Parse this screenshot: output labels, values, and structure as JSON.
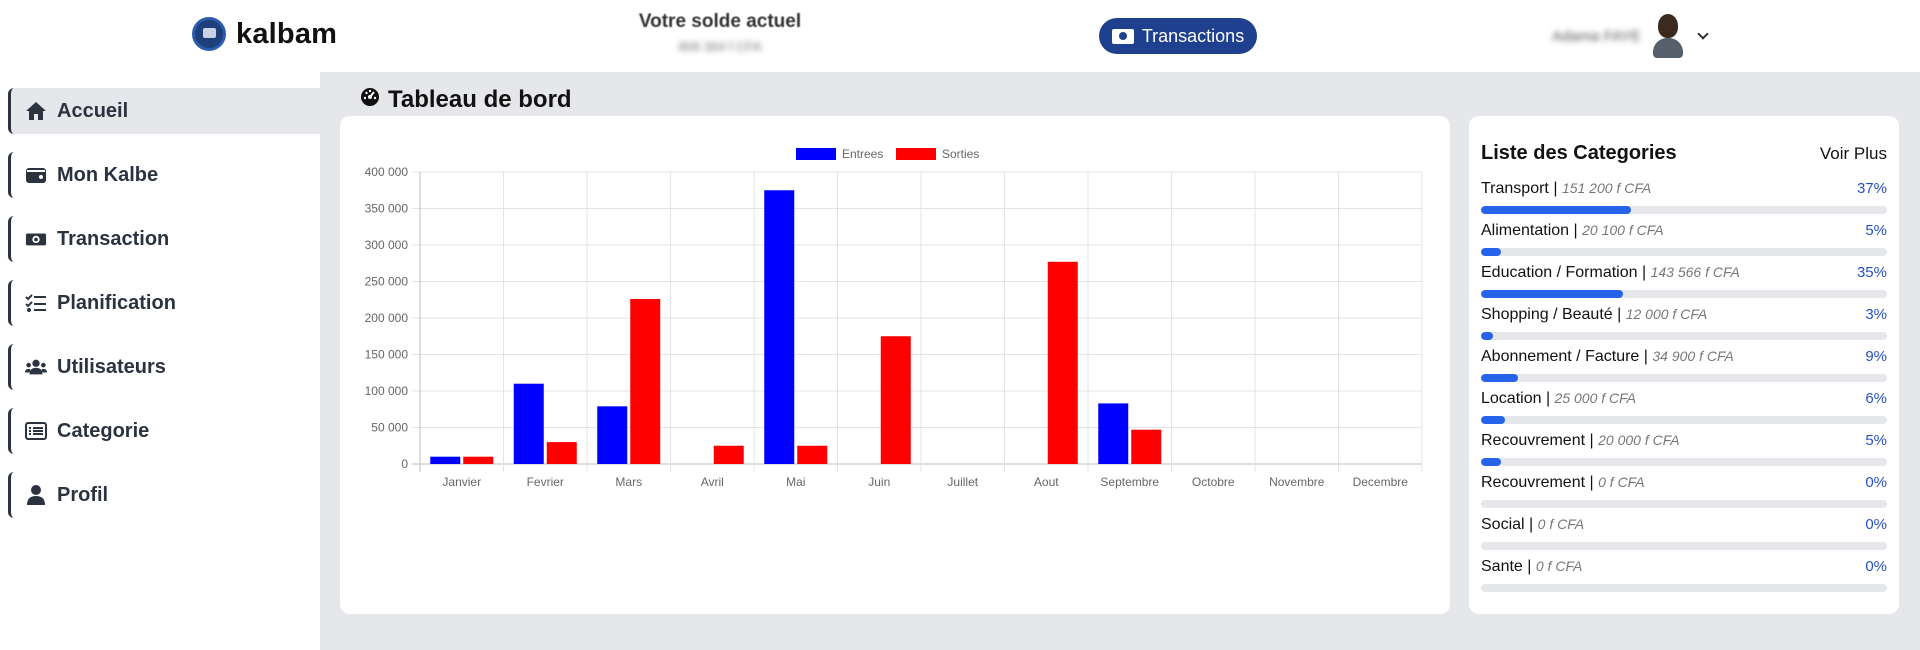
{
  "header": {
    "brand": "kalbam",
    "balance_title": "Votre solde actuel",
    "balance_value": "808 364 f CFA",
    "tx_button": "Transactions",
    "user_name": "Adama FAYE"
  },
  "sidebar": {
    "items": [
      {
        "label": "Accueil",
        "icon": "home-icon"
      },
      {
        "label": "Mon Kalbe",
        "icon": "wallet-icon"
      },
      {
        "label": "Transaction",
        "icon": "money-bill-icon"
      },
      {
        "label": "Planification",
        "icon": "tasks-icon"
      },
      {
        "label": "Utilisateurs",
        "icon": "users-icon"
      },
      {
        "label": "Categorie",
        "icon": "list-icon"
      },
      {
        "label": "Profil",
        "icon": "user-icon"
      }
    ]
  },
  "main": {
    "title": "Tableau de bord"
  },
  "chart_data": {
    "type": "bar",
    "categories": [
      "Janvier",
      "Fevrier",
      "Mars",
      "Avril",
      "Mai",
      "Juin",
      "Juillet",
      "Aout",
      "Septembre",
      "Octobre",
      "Novembre",
      "Decembre"
    ],
    "series": [
      {
        "name": "Entrees",
        "color": "#0000ff",
        "values": [
          10000,
          110000,
          79000,
          0,
          375000,
          0,
          0,
          0,
          83000,
          0,
          0,
          0
        ]
      },
      {
        "name": "Sorties",
        "color": "#ff0000",
        "values": [
          10000,
          30000,
          226000,
          25000,
          25000,
          175000,
          0,
          277000,
          47000,
          0,
          0,
          0
        ]
      }
    ],
    "ylim": [
      0,
      400000
    ],
    "yticks": [
      "0",
      "50 000",
      "100 000",
      "150 000",
      "200 000",
      "250 000",
      "300 000",
      "350 000",
      "400 000"
    ],
    "legend": "top-center",
    "grid": true
  },
  "categories": {
    "title": "Liste des Categories",
    "more": "Voir Plus",
    "items": [
      {
        "name": "Transport |",
        "amount": "151 200 f CFA",
        "pct": "37%",
        "fill": 0.37
      },
      {
        "name": "Alimentation |",
        "amount": "20 100 f CFA",
        "pct": "5%",
        "fill": 0.05
      },
      {
        "name": "Education / Formation |",
        "amount": "143 566 f CFA",
        "pct": "35%",
        "fill": 0.35
      },
      {
        "name": "Shopping / Beauté |",
        "amount": "12 000 f CFA",
        "pct": "3%",
        "fill": 0.03
      },
      {
        "name": "Abonnement / Facture |",
        "amount": "34 900 f CFA",
        "pct": "9%",
        "fill": 0.09
      },
      {
        "name": "Location |",
        "amount": "25 000 f CFA",
        "pct": "6%",
        "fill": 0.06
      },
      {
        "name": "Recouvrement |",
        "amount": "20 000 f CFA",
        "pct": "5%",
        "fill": 0.05
      },
      {
        "name": "Recouvrement |",
        "amount": "0 f CFA",
        "pct": "0%",
        "fill": 0
      },
      {
        "name": "Social |",
        "amount": "0 f CFA",
        "pct": "0%",
        "fill": 0
      },
      {
        "name": "Sante |",
        "amount": "0 f CFA",
        "pct": "0%",
        "fill": 0
      }
    ]
  }
}
